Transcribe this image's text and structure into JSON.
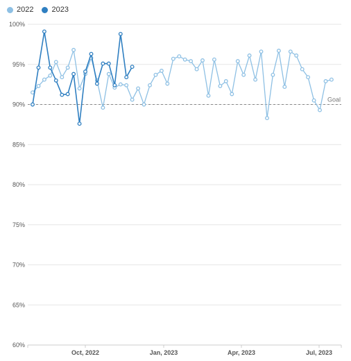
{
  "chart_data": {
    "type": "line",
    "title": "",
    "xlabel": "",
    "ylabel": "",
    "ylim": [
      60,
      100
    ],
    "yticks": [
      "100%",
      "95%",
      "90%",
      "85%",
      "80%",
      "75%",
      "70%",
      "65%",
      "60%"
    ],
    "xticks": [
      "Oct, 2022",
      "Jan, 2023",
      "Apr, 2023",
      "Jul, 2023"
    ],
    "goal": {
      "label": "Goal",
      "value": 90
    },
    "grid": true,
    "legend_position": "top-left",
    "series": [
      {
        "name": "2022",
        "color": "#8ec0e4",
        "values": [
          91.5,
          92.3,
          93.1,
          93.6,
          95.3,
          93.4,
          94.6,
          96.8,
          92.0,
          93.8,
          95.8,
          93.0,
          89.6,
          93.8,
          92.1,
          92.5,
          92.4,
          90.6,
          92.0,
          90.0,
          92.4,
          93.7,
          94.2,
          92.6,
          95.7,
          96.0,
          95.6,
          95.4,
          94.4,
          95.5,
          91.1,
          95.6,
          92.3,
          92.9,
          91.3,
          95.4,
          93.7,
          96.1,
          93.1,
          96.6,
          88.3,
          93.7,
          96.7,
          92.2,
          96.6,
          96.1,
          94.4,
          93.4,
          90.5,
          89.3,
          92.9,
          93.1
        ]
      },
      {
        "name": "2023",
        "color": "#2f7fc1",
        "values": [
          90.0,
          94.6,
          99.1,
          94.6,
          93.0,
          91.2,
          91.3,
          93.8,
          87.6,
          94.1,
          96.3,
          92.6,
          95.1,
          95.1,
          92.4,
          98.8,
          93.4,
          94.7
        ]
      }
    ]
  }
}
